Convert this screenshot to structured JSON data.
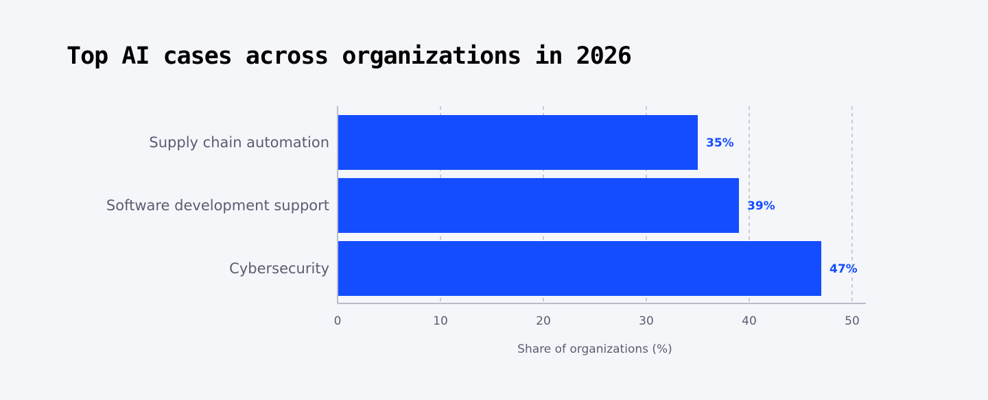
{
  "chart_data": {
    "type": "bar",
    "orientation": "horizontal",
    "title": "Top AI cases across organizations in 2026",
    "categories": [
      "Supply chain automation",
      "Software development support",
      "Cybersecurity"
    ],
    "values": [
      35,
      39,
      47
    ],
    "data_labels": [
      "35%",
      "39%",
      "47%"
    ],
    "xlabel": "Share of organizations (%)",
    "ylabel": "",
    "xlim": [
      0,
      50
    ],
    "xticks": [
      0,
      10,
      20,
      30,
      40,
      50
    ],
    "grid": "vertical dashed",
    "colors": {
      "bar": "#144dff",
      "label": "#144dff",
      "axis": "#b8bcc8",
      "grid": "#b8bcc8",
      "background": "#f5f6fa"
    }
  }
}
